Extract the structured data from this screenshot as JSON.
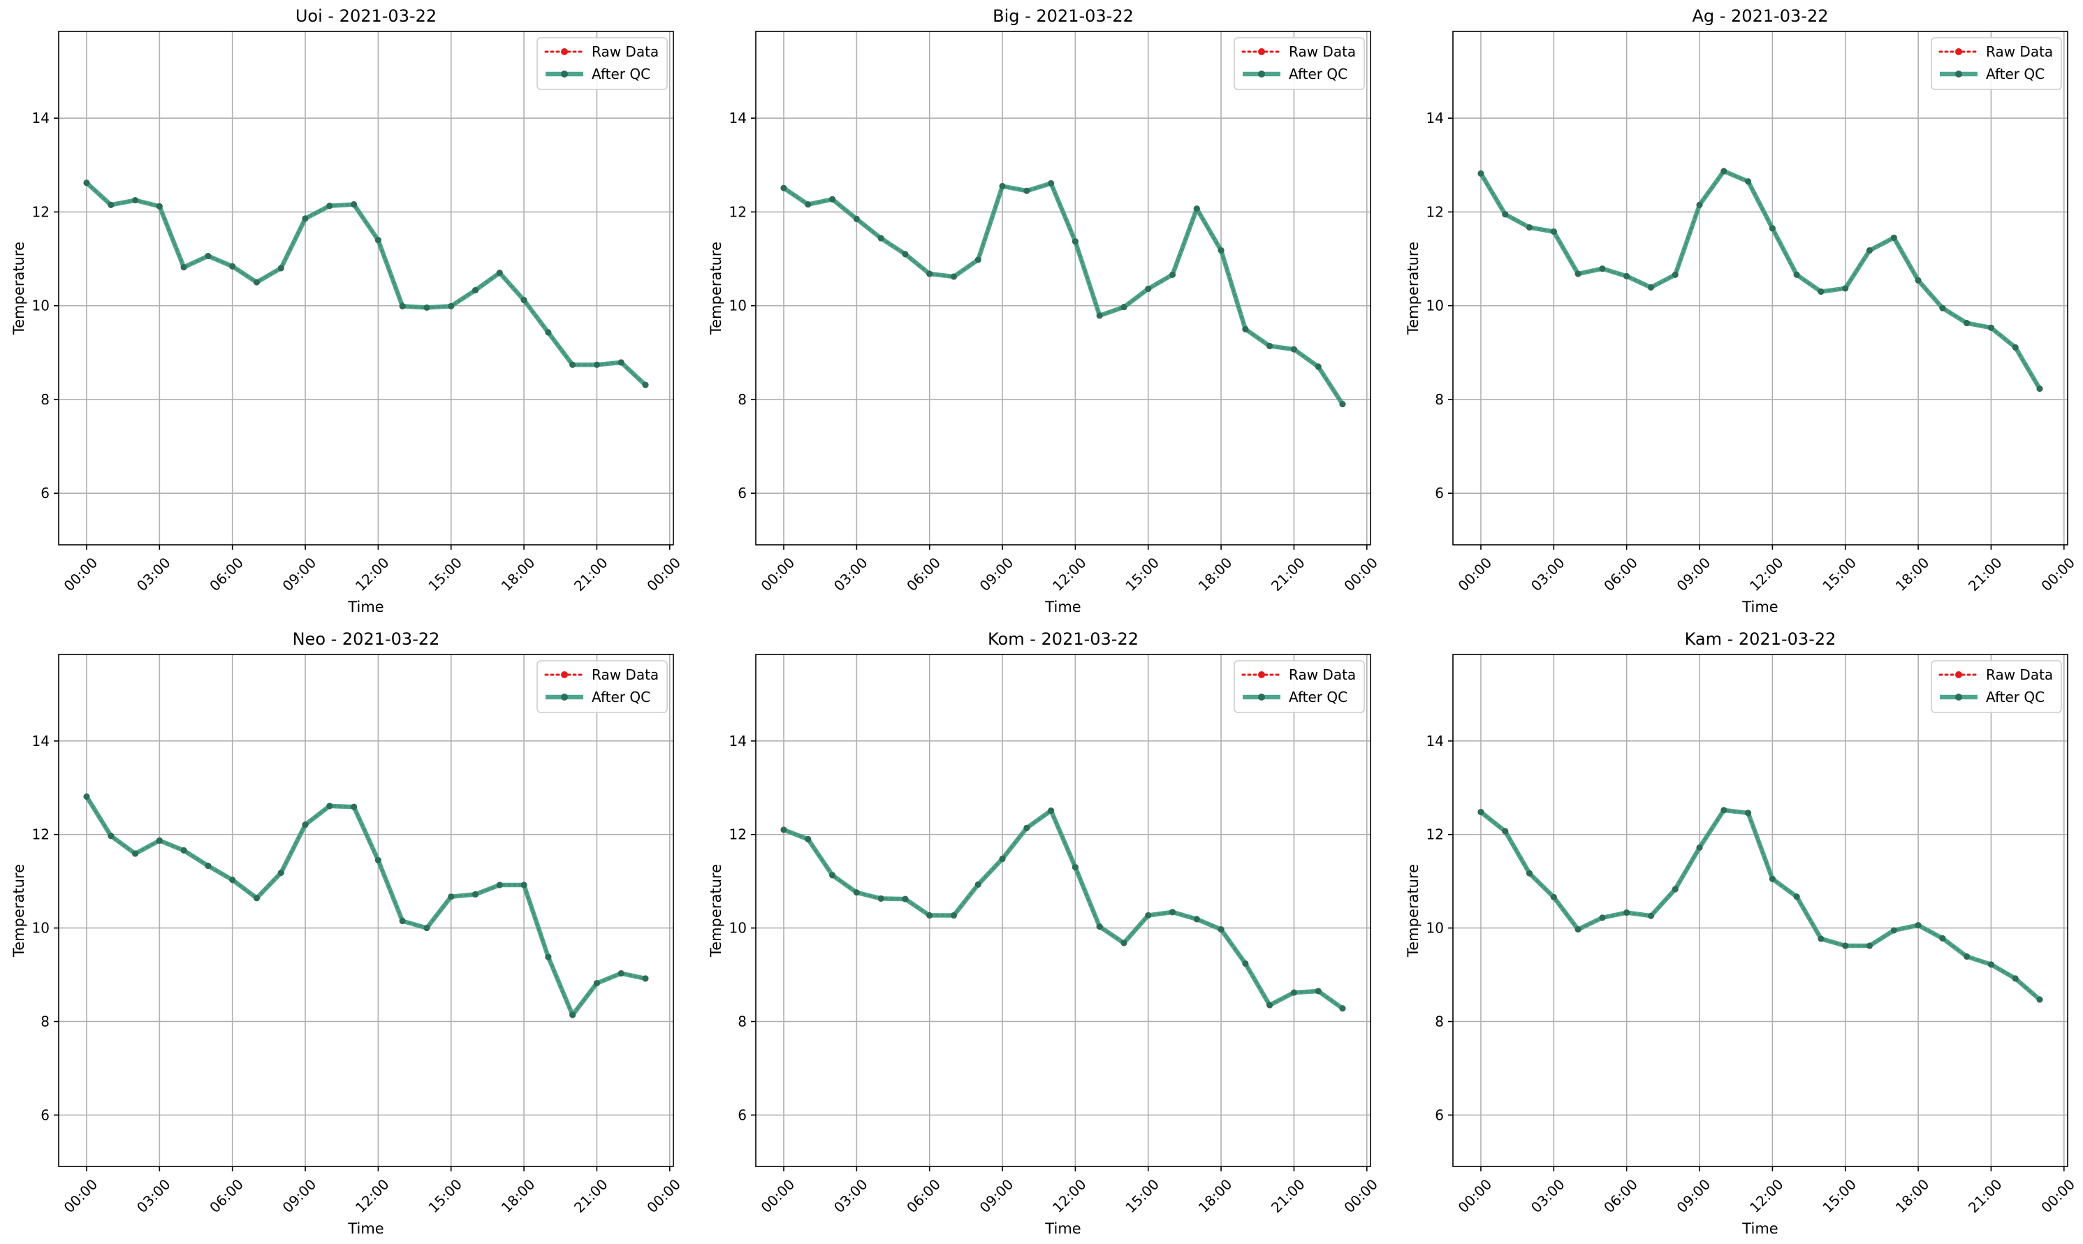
{
  "chart_data": [
    {
      "type": "line",
      "title": "Uoi - 2021-03-22",
      "xlabel": "Time",
      "ylabel": "Temperature",
      "ylim": [
        4.9,
        15.85
      ],
      "xlim_hours": [
        -1.15,
        24.15
      ],
      "xticks": [
        "00:00",
        "03:00",
        "06:00",
        "09:00",
        "12:00",
        "15:00",
        "18:00",
        "21:00",
        "00:00"
      ],
      "yticks": [
        "6",
        "8",
        "10",
        "12",
        "14"
      ],
      "grid": true,
      "legend_position": "top-right",
      "x": [
        "00:00",
        "01:00",
        "02:00",
        "03:00",
        "04:00",
        "05:00",
        "06:00",
        "07:00",
        "08:00",
        "09:00",
        "10:00",
        "11:00",
        "12:00",
        "13:00",
        "14:00",
        "15:00",
        "16:00",
        "17:00",
        "18:00",
        "19:00",
        "20:00",
        "21:00",
        "22:00",
        "23:00"
      ],
      "series": [
        {
          "name": "Raw Data",
          "values": [
            12.62,
            12.15,
            12.25,
            12.12,
            10.82,
            11.06,
            10.84,
            10.5,
            10.8,
            11.86,
            12.13,
            12.16,
            11.4,
            9.99,
            9.96,
            9.99,
            10.33,
            10.7,
            10.12,
            9.43,
            8.74,
            8.74,
            8.79,
            8.31
          ]
        },
        {
          "name": "After QC",
          "values": [
            12.62,
            12.15,
            12.25,
            12.12,
            10.82,
            11.06,
            10.84,
            10.5,
            10.8,
            11.86,
            12.13,
            12.16,
            11.4,
            9.99,
            9.96,
            9.99,
            10.33,
            10.7,
            10.12,
            9.43,
            8.74,
            8.74,
            8.79,
            8.31
          ]
        }
      ]
    },
    {
      "type": "line",
      "title": "Big - 2021-03-22",
      "xlabel": "Time",
      "ylabel": "Temperature",
      "ylim": [
        4.9,
        15.85
      ],
      "xlim_hours": [
        -1.15,
        24.15
      ],
      "xticks": [
        "00:00",
        "03:00",
        "06:00",
        "09:00",
        "12:00",
        "15:00",
        "18:00",
        "21:00",
        "00:00"
      ],
      "yticks": [
        "6",
        "8",
        "10",
        "12",
        "14"
      ],
      "grid": true,
      "legend_position": "top-right",
      "x": [
        "00:00",
        "01:00",
        "02:00",
        "03:00",
        "04:00",
        "05:00",
        "06:00",
        "07:00",
        "08:00",
        "09:00",
        "10:00",
        "11:00",
        "12:00",
        "13:00",
        "14:00",
        "15:00",
        "16:00",
        "17:00",
        "18:00",
        "19:00",
        "20:00",
        "21:00",
        "22:00",
        "23:00"
      ],
      "series": [
        {
          "name": "Raw Data",
          "values": [
            12.51,
            12.16,
            12.27,
            11.85,
            11.44,
            11.1,
            10.68,
            10.62,
            10.98,
            12.55,
            12.45,
            12.61,
            11.37,
            9.79,
            9.97,
            10.36,
            10.66,
            12.07,
            11.18,
            9.5,
            9.14,
            9.07,
            8.7,
            7.9
          ]
        },
        {
          "name": "After QC",
          "values": [
            12.51,
            12.16,
            12.27,
            11.85,
            11.44,
            11.1,
            10.68,
            10.62,
            10.98,
            12.55,
            12.45,
            12.61,
            11.37,
            9.79,
            9.97,
            10.36,
            10.66,
            12.07,
            11.18,
            9.5,
            9.14,
            9.07,
            8.7,
            7.9
          ]
        }
      ]
    },
    {
      "type": "line",
      "title": "Ag - 2021-03-22",
      "xlabel": "Time",
      "ylabel": "Temperature",
      "ylim": [
        4.9,
        15.85
      ],
      "xlim_hours": [
        -1.15,
        24.15
      ],
      "xticks": [
        "00:00",
        "03:00",
        "06:00",
        "09:00",
        "12:00",
        "15:00",
        "18:00",
        "21:00",
        "00:00"
      ],
      "yticks": [
        "6",
        "8",
        "10",
        "12",
        "14"
      ],
      "grid": true,
      "legend_position": "top-right",
      "x": [
        "00:00",
        "01:00",
        "02:00",
        "03:00",
        "04:00",
        "05:00",
        "06:00",
        "07:00",
        "08:00",
        "09:00",
        "10:00",
        "11:00",
        "12:00",
        "13:00",
        "14:00",
        "15:00",
        "16:00",
        "17:00",
        "18:00",
        "19:00",
        "20:00",
        "21:00",
        "22:00",
        "23:00"
      ],
      "series": [
        {
          "name": "Raw Data",
          "values": [
            12.82,
            11.95,
            11.67,
            11.58,
            10.68,
            10.79,
            10.63,
            10.39,
            10.66,
            12.15,
            12.87,
            12.65,
            11.65,
            10.66,
            10.3,
            10.37,
            11.18,
            11.45,
            10.54,
            9.95,
            9.63,
            9.53,
            9.11,
            8.23
          ]
        },
        {
          "name": "After QC",
          "values": [
            12.82,
            11.95,
            11.67,
            11.58,
            10.68,
            10.79,
            10.63,
            10.39,
            10.66,
            12.15,
            12.87,
            12.65,
            11.65,
            10.66,
            10.3,
            10.37,
            11.18,
            11.45,
            10.54,
            9.95,
            9.63,
            9.53,
            9.11,
            8.23
          ]
        }
      ]
    },
    {
      "type": "line",
      "title": "Neo - 2021-03-22",
      "xlabel": "Time",
      "ylabel": "Temperature",
      "ylim": [
        4.9,
        15.85
      ],
      "xlim_hours": [
        -1.15,
        24.15
      ],
      "xticks": [
        "00:00",
        "03:00",
        "06:00",
        "09:00",
        "12:00",
        "15:00",
        "18:00",
        "21:00",
        "00:00"
      ],
      "yticks": [
        "6",
        "8",
        "10",
        "12",
        "14"
      ],
      "grid": true,
      "legend_position": "top-right",
      "x": [
        "00:00",
        "01:00",
        "02:00",
        "03:00",
        "04:00",
        "05:00",
        "06:00",
        "07:00",
        "08:00",
        "09:00",
        "10:00",
        "11:00",
        "12:00",
        "13:00",
        "14:00",
        "15:00",
        "16:00",
        "17:00",
        "18:00",
        "19:00",
        "20:00",
        "21:00",
        "22:00",
        "23:00"
      ],
      "series": [
        {
          "name": "Raw Data",
          "values": [
            12.81,
            11.97,
            11.59,
            11.87,
            11.66,
            11.33,
            11.03,
            10.64,
            11.18,
            12.21,
            12.61,
            12.59,
            11.45,
            10.15,
            10.0,
            10.67,
            10.72,
            10.92,
            10.92,
            9.38,
            8.14,
            8.82,
            9.03,
            8.92
          ]
        },
        {
          "name": "After QC",
          "values": [
            12.81,
            11.97,
            11.59,
            11.87,
            11.66,
            11.33,
            11.03,
            10.64,
            11.18,
            12.21,
            12.61,
            12.59,
            11.45,
            10.15,
            10.0,
            10.67,
            10.72,
            10.92,
            10.92,
            9.38,
            8.14,
            8.82,
            9.03,
            8.92
          ]
        }
      ]
    },
    {
      "type": "line",
      "title": "Kom - 2021-03-22",
      "xlabel": "Time",
      "ylabel": "Temperature",
      "ylim": [
        4.9,
        15.85
      ],
      "xlim_hours": [
        -1.15,
        24.15
      ],
      "xticks": [
        "00:00",
        "03:00",
        "06:00",
        "09:00",
        "12:00",
        "15:00",
        "18:00",
        "21:00",
        "00:00"
      ],
      "yticks": [
        "6",
        "8",
        "10",
        "12",
        "14"
      ],
      "grid": true,
      "legend_position": "top-right",
      "x": [
        "00:00",
        "01:00",
        "02:00",
        "03:00",
        "04:00",
        "05:00",
        "06:00",
        "07:00",
        "08:00",
        "09:00",
        "10:00",
        "11:00",
        "12:00",
        "13:00",
        "14:00",
        "15:00",
        "16:00",
        "17:00",
        "18:00",
        "19:00",
        "20:00",
        "21:00",
        "22:00",
        "23:00"
      ],
      "series": [
        {
          "name": "Raw Data",
          "values": [
            12.1,
            11.9,
            11.13,
            10.76,
            10.63,
            10.62,
            10.27,
            10.27,
            10.93,
            11.48,
            12.14,
            12.51,
            11.3,
            10.03,
            9.68,
            10.27,
            10.34,
            10.19,
            9.97,
            9.24,
            8.35,
            8.62,
            8.65,
            8.28
          ]
        },
        {
          "name": "After QC",
          "values": [
            12.1,
            11.9,
            11.13,
            10.76,
            10.63,
            10.62,
            10.27,
            10.27,
            10.93,
            11.48,
            12.14,
            12.51,
            11.3,
            10.03,
            9.68,
            10.27,
            10.34,
            10.19,
            9.97,
            9.24,
            8.35,
            8.62,
            8.65,
            8.28
          ]
        }
      ]
    },
    {
      "type": "line",
      "title": "Kam - 2021-03-22",
      "xlabel": "Time",
      "ylabel": "Temperature",
      "ylim": [
        4.9,
        15.85
      ],
      "xlim_hours": [
        -1.15,
        24.15
      ],
      "xticks": [
        "00:00",
        "03:00",
        "06:00",
        "09:00",
        "12:00",
        "15:00",
        "18:00",
        "21:00",
        "00:00"
      ],
      "yticks": [
        "6",
        "8",
        "10",
        "12",
        "14"
      ],
      "grid": true,
      "legend_position": "top-right",
      "x": [
        "00:00",
        "01:00",
        "02:00",
        "03:00",
        "04:00",
        "05:00",
        "06:00",
        "07:00",
        "08:00",
        "09:00",
        "10:00",
        "11:00",
        "12:00",
        "13:00",
        "14:00",
        "15:00",
        "16:00",
        "17:00",
        "18:00",
        "19:00",
        "20:00",
        "21:00",
        "22:00",
        "23:00"
      ],
      "series": [
        {
          "name": "Raw Data",
          "values": [
            12.48,
            12.07,
            11.17,
            10.66,
            9.97,
            10.22,
            10.33,
            10.26,
            10.83,
            11.72,
            12.52,
            12.46,
            11.05,
            10.67,
            9.77,
            9.62,
            9.62,
            9.95,
            10.06,
            9.78,
            9.39,
            9.22,
            8.92,
            8.47
          ]
        },
        {
          "name": "After QC",
          "values": [
            12.48,
            12.07,
            11.17,
            10.66,
            9.97,
            10.22,
            10.33,
            10.26,
            10.83,
            11.72,
            12.52,
            12.46,
            11.05,
            10.67,
            9.77,
            9.62,
            9.62,
            9.95,
            10.06,
            9.78,
            9.39,
            9.22,
            8.92,
            8.47
          ]
        }
      ]
    }
  ],
  "colors": {
    "raw": "#e31a1c",
    "qc_line": "#3a9c80",
    "qc_marker": "#2a6e5a",
    "grid": "#b0b0b0"
  }
}
